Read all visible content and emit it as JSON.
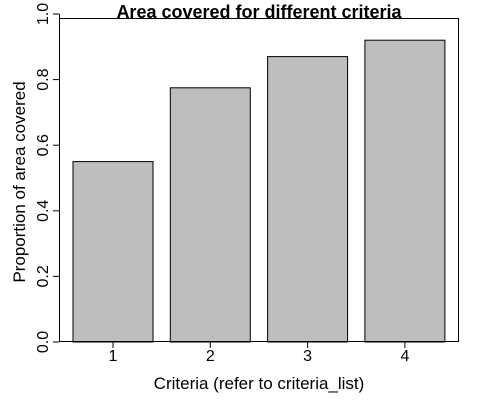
{
  "chart_data": {
    "type": "bar",
    "title": "Area covered for different criteria",
    "xlabel": "Criteria (refer to criteria_list)",
    "ylabel": "Proportion of area covered",
    "categories": [
      "1",
      "2",
      "3",
      "4"
    ],
    "values": [
      0.55,
      0.775,
      0.87,
      0.92
    ],
    "ylim": [
      0,
      1
    ],
    "yticks": [
      0.0,
      0.2,
      0.4,
      0.6,
      0.8,
      1.0
    ],
    "ytick_labels": [
      "0.0",
      "0.2",
      "0.4",
      "0.6",
      "0.8",
      "1.0"
    ],
    "bar_color": "#bebebe",
    "bar_edge_color": "#000000",
    "grid": false,
    "legend": "none"
  }
}
